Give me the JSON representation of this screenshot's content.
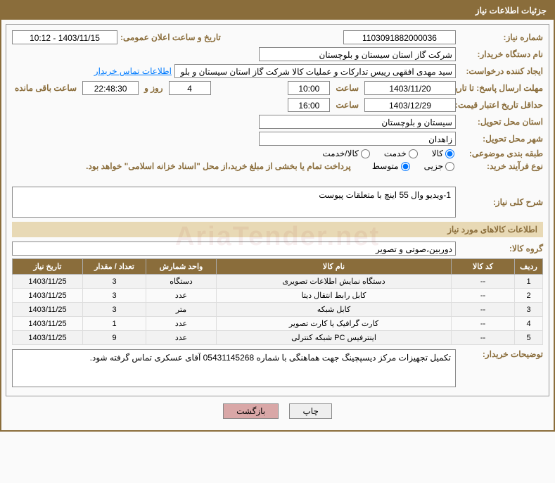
{
  "header_title": "جزئیات اطلاعات نیاز",
  "labels": {
    "need_no": "شماره نیاز:",
    "announce_date": "تاریخ و ساعت اعلان عمومی:",
    "buyer_org": "نام دستگاه خریدار:",
    "requester": "ایجاد کننده درخواست:",
    "contact_link": "اطلاعات تماس خریدار",
    "reply_deadline": "مهلت ارسال پاسخ: تا تاریخ:",
    "hour": "ساعت",
    "days_and": "روز و",
    "time_left": "ساعت باقی مانده",
    "validity_deadline": "حداقل تاریخ اعتبار قیمت: تا تاریخ:",
    "province": "استان محل تحویل:",
    "city": "شهر محل تحویل:",
    "subject_cat": "طبقه بندی موضوعی:",
    "goods": "کالا",
    "service": "خدمت",
    "goods_service": "کالا/خدمت",
    "purchase_process": "نوع فرآیند خرید:",
    "partial": "جزیی",
    "medium": "متوسط",
    "payment_note": "پرداخت تمام یا بخشی از مبلغ خرید،از محل \"اسناد خزانه اسلامی\" خواهد بود.",
    "general_desc": "شرح کلی نیاز:",
    "goods_info_section": "اطلاعات کالاهای مورد نیاز",
    "goods_group": "گروه کالا:",
    "buyer_notes": "توضیحات خریدار:",
    "print": "چاپ",
    "back": "بازگشت"
  },
  "fields": {
    "need_no": "1103091882000036",
    "announce_date": "1403/11/15 - 10:12",
    "buyer_org": "شرکت گاز استان سیستان و بلوچستان",
    "requester": "سید مهدی افقهی رییس تدارکات و عملیات کالا شرکت گاز استان سیستان و بلو",
    "reply_date": "1403/11/20",
    "reply_hour": "10:00",
    "days_left": "4",
    "hours_left": "22:48:30",
    "validity_date": "1403/12/29",
    "validity_hour": "16:00",
    "province": "سیستان و بلوچستان",
    "city": "زاهدان",
    "general_desc": "1-ویدیو وال 55 اینچ با متعلقات پیوست",
    "goods_group": "دوربین،صوتی و تصویر",
    "buyer_notes": "تکمیل تجهیزات مرکز دیسپچینگ جهت هماهنگی با شماره 05431145268 آقای عسکری تماس گرفته شود."
  },
  "table": {
    "headers": [
      "ردیف",
      "کد کالا",
      "نام کالا",
      "واحد شمارش",
      "تعداد / مقدار",
      "تاریخ نیاز"
    ],
    "rows": [
      [
        "1",
        "--",
        "دستگاه نمایش اطلاعات تصویری",
        "دستگاه",
        "3",
        "1403/11/25"
      ],
      [
        "2",
        "--",
        "کابل رابط انتقال دیتا",
        "عدد",
        "3",
        "1403/11/25"
      ],
      [
        "3",
        "--",
        "کابل شبکه",
        "متر",
        "3",
        "1403/11/25"
      ],
      [
        "4",
        "--",
        "کارت گرافیک یا کارت تصویر",
        "عدد",
        "1",
        "1403/11/25"
      ],
      [
        "5",
        "--",
        "اینترفیس PC شبکه کنترلی",
        "عدد",
        "9",
        "1403/11/25"
      ]
    ]
  },
  "watermark": "AriaTender.net"
}
